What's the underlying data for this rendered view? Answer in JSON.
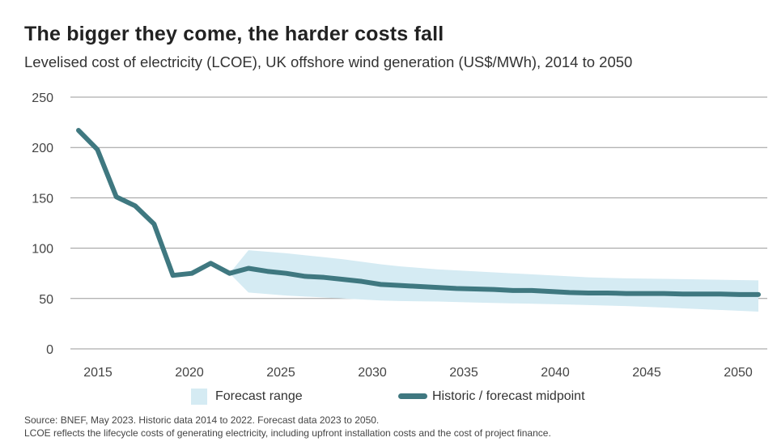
{
  "title": "The bigger they come, the harder costs fall",
  "subtitle": "Levelised cost of electricity (LCOE), UK offshore wind generation (US$/MWh), 2014 to 2050",
  "legend": {
    "range_label": "Forecast range",
    "line_label": "Historic / forecast midpoint"
  },
  "footnotes": [
    "Source: BNEF, May 2023. Historic data 2014 to 2022. Forecast data 2023 to 2050.",
    "LCOE reflects the lifecycle costs of generating electricity, including upfront installation costs and the cost of project finance."
  ],
  "colors": {
    "line": "#3f7880",
    "band": "#d5ebf3",
    "grid": "#9a9a9a"
  },
  "chart_data": {
    "type": "line",
    "ylim": [
      0,
      250
    ],
    "yticks": [
      0,
      50,
      100,
      150,
      200,
      250
    ],
    "xticks": [
      2015,
      2020,
      2025,
      2030,
      2035,
      2040,
      2045,
      2050
    ],
    "grid": true,
    "legend_position": "bottom",
    "series": [
      {
        "name": "Historic / forecast midpoint",
        "x": [
          2014,
          2015,
          2016,
          2017,
          2018,
          2019,
          2020,
          2021,
          2022,
          2023,
          2024,
          2025,
          2026,
          2027,
          2028,
          2029,
          2030,
          2031,
          2032,
          2033,
          2034,
          2035,
          2036,
          2037,
          2038,
          2039,
          2040,
          2041,
          2042,
          2043,
          2044,
          2045,
          2046,
          2047,
          2048,
          2049,
          2050
        ],
        "y": [
          217,
          198,
          151,
          142,
          124,
          73,
          75,
          85,
          75,
          80,
          77,
          75,
          72,
          71,
          69,
          67,
          64,
          63,
          62,
          61,
          60,
          59.5,
          59,
          58,
          58,
          57,
          56,
          55.5,
          55.5,
          55,
          55,
          55,
          54.5,
          54.5,
          54.5,
          54,
          54
        ]
      }
    ],
    "band": {
      "name": "Forecast range",
      "x": [
        2022,
        2023,
        2025,
        2027,
        2028,
        2030,
        2031,
        2033,
        2035,
        2040,
        2041,
        2043,
        2045,
        2050
      ],
      "upper": [
        75,
        98,
        95,
        91,
        89,
        84,
        82,
        79,
        77,
        72,
        71,
        70,
        69.5,
        68
      ],
      "lower": [
        75,
        56,
        53,
        51,
        50,
        48,
        47.5,
        47,
        46,
        44,
        43.5,
        42.5,
        41,
        37
      ]
    }
  }
}
